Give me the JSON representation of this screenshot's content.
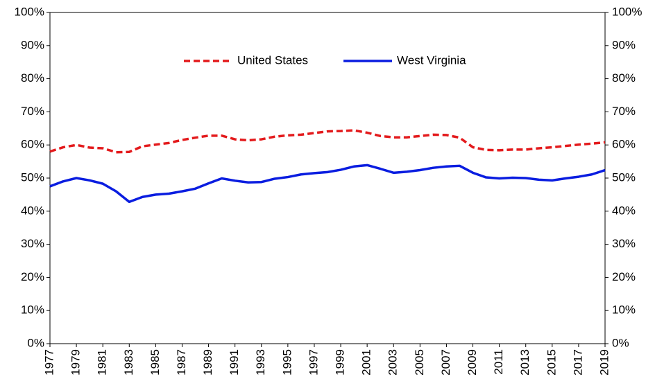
{
  "chart_data": {
    "type": "line",
    "x": [
      1977,
      1978,
      1979,
      1980,
      1981,
      1982,
      1983,
      1984,
      1985,
      1986,
      1987,
      1988,
      1989,
      1990,
      1991,
      1992,
      1993,
      1994,
      1995,
      1996,
      1997,
      1998,
      1999,
      2000,
      2001,
      2002,
      2003,
      2004,
      2005,
      2006,
      2007,
      2008,
      2009,
      2010,
      2011,
      2012,
      2013,
      2014,
      2015,
      2016,
      2017,
      2018,
      2019
    ],
    "xlim": [
      1977,
      2019
    ],
    "xticks": [
      1977,
      1979,
      1981,
      1983,
      1985,
      1987,
      1989,
      1991,
      1993,
      1995,
      1997,
      1999,
      2001,
      2003,
      2005,
      2007,
      2009,
      2011,
      2013,
      2015,
      2017,
      2019
    ],
    "ylim": [
      0,
      100
    ],
    "yticks": [
      {
        "value": 0,
        "label": "0%"
      },
      {
        "value": 10,
        "label": "10%"
      },
      {
        "value": 20,
        "label": "20%"
      },
      {
        "value": 30,
        "label": "30%"
      },
      {
        "value": 40,
        "label": "40%"
      },
      {
        "value": 50,
        "label": "50%"
      },
      {
        "value": 60,
        "label": "60%"
      },
      {
        "value": 70,
        "label": "70%"
      },
      {
        "value": 80,
        "label": "80%"
      },
      {
        "value": 90,
        "label": "90%"
      },
      {
        "value": 100,
        "label": "100%"
      }
    ],
    "y2lim": [
      0,
      100
    ],
    "y2ticks": [
      {
        "value": 0,
        "label": "0%"
      },
      {
        "value": 10,
        "label": "10%"
      },
      {
        "value": 20,
        "label": "20%"
      },
      {
        "value": 30,
        "label": "30%"
      },
      {
        "value": 40,
        "label": "40%"
      },
      {
        "value": 50,
        "label": "50%"
      },
      {
        "value": 60,
        "label": "60%"
      },
      {
        "value": 70,
        "label": "70%"
      },
      {
        "value": 80,
        "label": "80%"
      },
      {
        "value": 90,
        "label": "90%"
      },
      {
        "value": 100,
        "label": "100%"
      }
    ],
    "legend": "top",
    "series": [
      {
        "name": "United States",
        "color": "#e31a1c",
        "dash": true,
        "values": [
          58,
          59.3,
          60,
          59.2,
          59,
          57.8,
          57.9,
          59.6,
          60.1,
          60.6,
          61.5,
          62.2,
          62.8,
          62.8,
          61.7,
          61.4,
          61.7,
          62.5,
          62.9,
          63.1,
          63.6,
          64.1,
          64.2,
          64.4,
          63.7,
          62.7,
          62.3,
          62.3,
          62.7,
          63.1,
          63,
          62.2,
          59.3,
          58.5,
          58.4,
          58.6,
          58.6,
          59,
          59.3,
          59.7,
          60.1,
          60.4,
          60.8
        ]
      },
      {
        "name": "West Virginia",
        "color": "#0a1de0",
        "dash": false,
        "values": [
          47.5,
          49,
          50,
          49.3,
          48.3,
          46,
          42.8,
          44.3,
          45,
          45.3,
          46,
          46.8,
          48.4,
          49.9,
          49.2,
          48.7,
          48.8,
          49.8,
          50.3,
          51.1,
          51.5,
          51.8,
          52.5,
          53.5,
          53.9,
          52.8,
          51.6,
          51.9,
          52.4,
          53.1,
          53.5,
          53.7,
          51.6,
          50.2,
          49.9,
          50.1,
          50,
          49.5,
          49.3,
          49.9,
          50.4,
          51.1,
          52.4
        ]
      }
    ]
  }
}
